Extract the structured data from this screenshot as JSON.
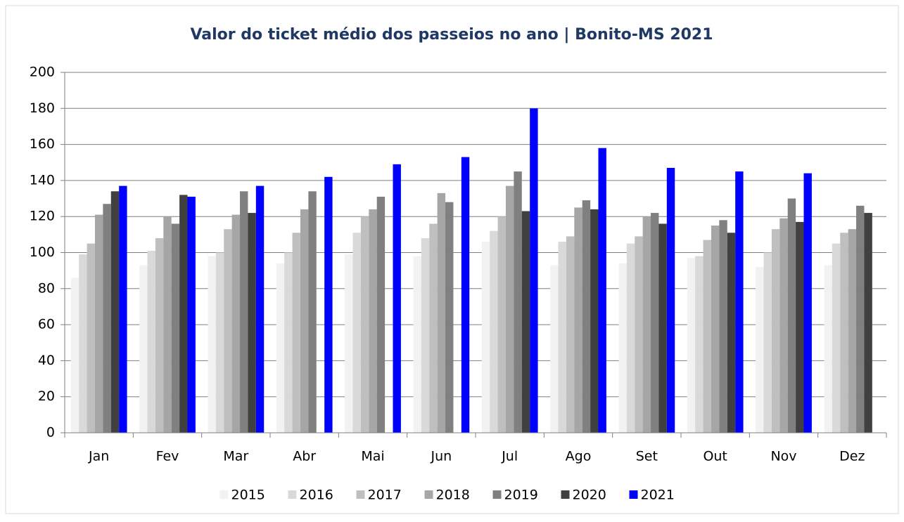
{
  "chart_data": {
    "type": "bar",
    "title": "Valor do ticket médio dos passeios no ano | Bonito-MS 2021",
    "categories": [
      "Jan",
      "Fev",
      "Mar",
      "Abr",
      "Mai",
      "Jun",
      "Jul",
      "Ago",
      "Set",
      "Out",
      "Nov",
      "Dez"
    ],
    "series": [
      {
        "name": "2015",
        "color": "#f2f2f2",
        "values": [
          86,
          93,
          98,
          94,
          99,
          98,
          106,
          93,
          94,
          97,
          92,
          93
        ]
      },
      {
        "name": "2016",
        "color": "#d9d9d9",
        "values": [
          99,
          101,
          100,
          100,
          111,
          108,
          112,
          106,
          105,
          98,
          100,
          105
        ]
      },
      {
        "name": "2017",
        "color": "#bfbfbf",
        "values": [
          105,
          108,
          113,
          111,
          120,
          116,
          120,
          109,
          109,
          107,
          113,
          111
        ]
      },
      {
        "name": "2018",
        "color": "#a6a6a6",
        "values": [
          121,
          120,
          121,
          124,
          124,
          133,
          137,
          125,
          120,
          115,
          119,
          113
        ]
      },
      {
        "name": "2019",
        "color": "#808080",
        "values": [
          127,
          116,
          134,
          134,
          131,
          128,
          145,
          129,
          122,
          118,
          130,
          126
        ]
      },
      {
        "name": "2020",
        "color": "#404040",
        "values": [
          134,
          132,
          122,
          null,
          null,
          null,
          123,
          124,
          116,
          111,
          117,
          122
        ]
      },
      {
        "name": "2021",
        "color": "#0000ff",
        "values": [
          137,
          131,
          137,
          142,
          149,
          153,
          180,
          158,
          147,
          145,
          144,
          null
        ]
      }
    ],
    "ylim": [
      0,
      200
    ],
    "yticks": [
      0,
      20,
      40,
      60,
      80,
      100,
      120,
      140,
      160,
      180,
      200
    ],
    "grid": true
  }
}
